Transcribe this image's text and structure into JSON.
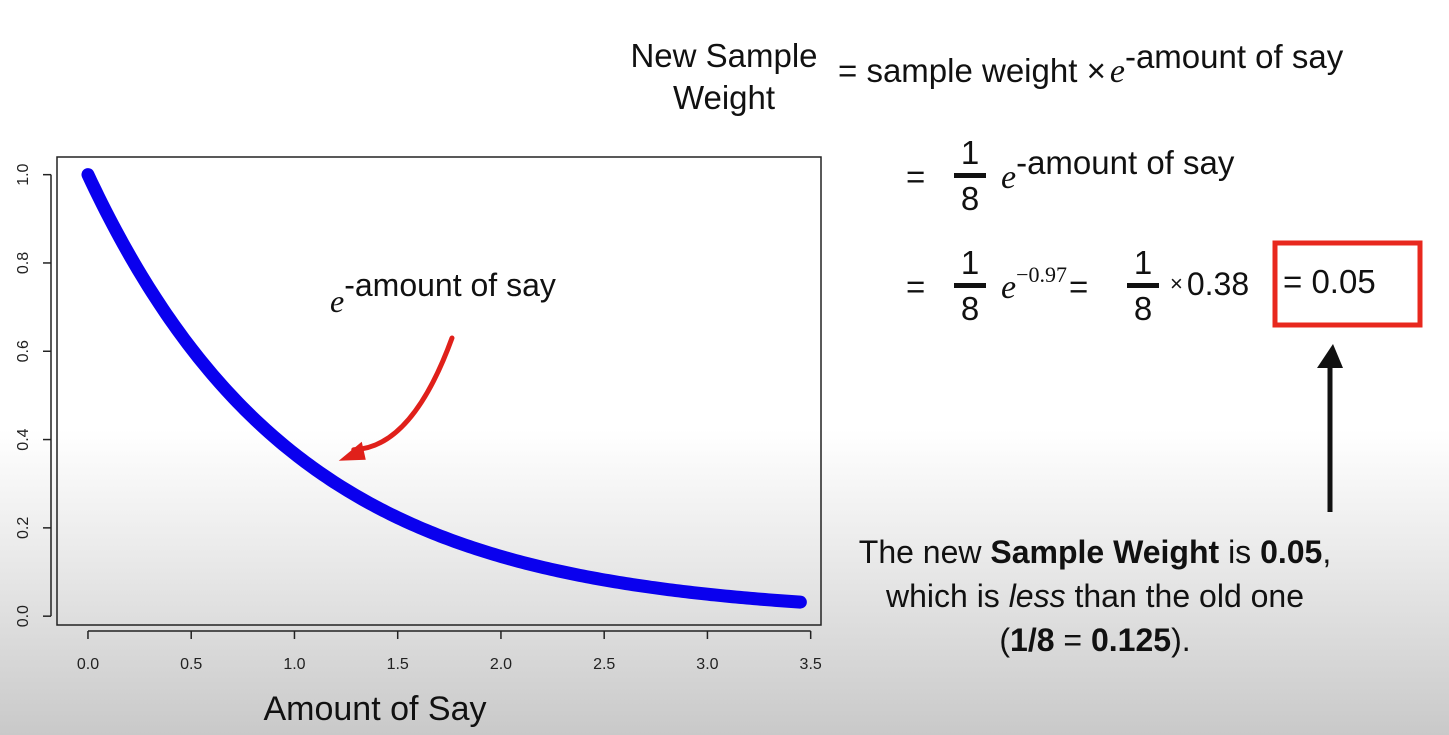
{
  "chart_data": {
    "type": "line",
    "xlabel": "Amount of Say",
    "ylabel": "",
    "xlim": [
      -0.15,
      3.55
    ],
    "ylim": [
      -0.02,
      1.04
    ],
    "x_ticks": [
      "0.0",
      "0.5",
      "1.0",
      "1.5",
      "2.0",
      "2.5",
      "3.0",
      "3.5"
    ],
    "y_ticks": [
      "0.0",
      "0.2",
      "0.4",
      "0.6",
      "0.8",
      "1.0"
    ],
    "series": [
      {
        "function": "exp(-x)",
        "x": [
          0,
          0.25,
          0.5,
          0.75,
          1.0,
          1.25,
          1.5,
          1.75,
          2.0,
          2.25,
          2.5,
          2.75,
          3.0,
          3.25,
          3.45
        ],
        "values": [
          1.0,
          0.779,
          0.607,
          0.472,
          0.368,
          0.287,
          0.223,
          0.174,
          0.135,
          0.105,
          0.082,
          0.064,
          0.05,
          0.039,
          0.032
        ],
        "color": "#0a00ee"
      }
    ],
    "annotation": {
      "text_base": "e",
      "text_sup": "-amount of say",
      "arrow_color": "#e0201a",
      "points_to": [
        1.2,
        0.3
      ]
    },
    "grid": false
  },
  "formula": {
    "lhs_line1": "New Sample",
    "lhs_line2": "Weight",
    "eq1": "=",
    "sample_weight": "sample weight",
    "times": "×",
    "e": "e",
    "exp1": "-amount of say",
    "eq2": "=",
    "frac_num": "1",
    "frac_den": "8",
    "e2": "e",
    "exp2": "-amount of say",
    "eq3": "=",
    "e3": "e",
    "exp3": "−0.97",
    "eq4": "=",
    "times_small": "×",
    "value_038": "0.38",
    "result": "= 0.05",
    "box_color": "#e8281e"
  },
  "note": {
    "line1_pre": "The new ",
    "line1_bold": "Sample Weight",
    "line1_mid": " is ",
    "line1_val": "0.05",
    "line1_end": ",",
    "line2_pre": "which is ",
    "line2_italic": "less",
    "line2_post": " than the old one",
    "line3_open": "(",
    "line3_bold1": "1/8",
    "line3_eq": " = ",
    "line3_bold2": "0.125",
    "line3_close": ")."
  }
}
